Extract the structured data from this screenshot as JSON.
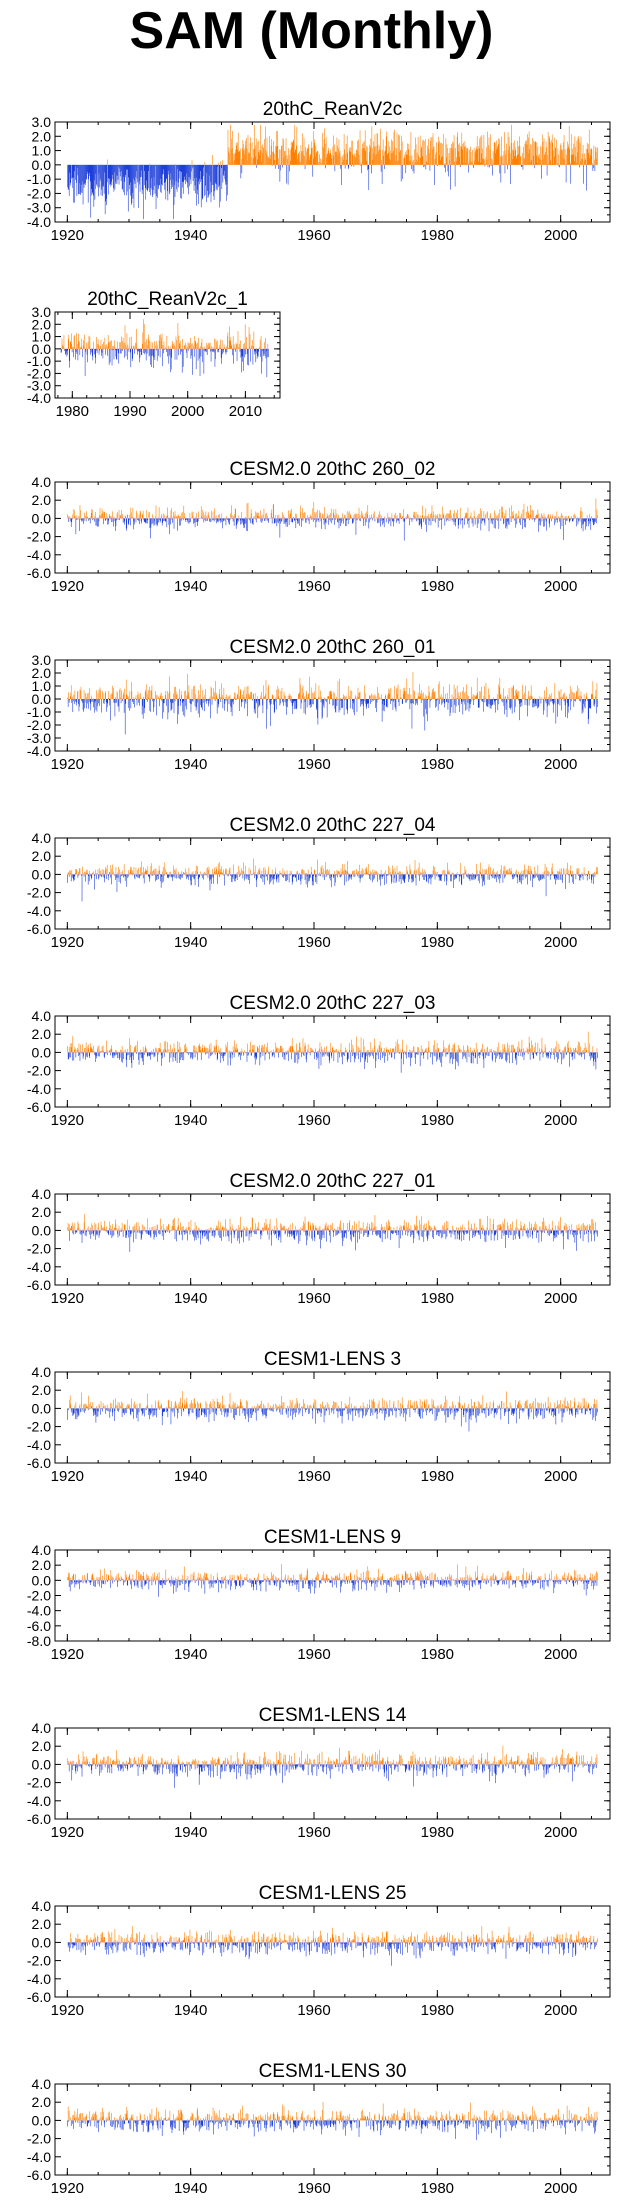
{
  "title": "SAM (Monthly)",
  "colors": {
    "positive": "#ff8000",
    "negative": "#1f3fd8",
    "axis": "#000000"
  },
  "chart_data": [
    {
      "type": "bar",
      "title": "20thC_ReanV2c",
      "x_range": [
        1918,
        2008
      ],
      "x_ticks": [
        1920,
        1940,
        1960,
        1980,
        2000
      ],
      "y_range": [
        -4.0,
        3.0
      ],
      "y_ticks": [
        "3.0",
        "2.0",
        "1.0",
        "0.0",
        "-1.0",
        "-2.0",
        "-3.0",
        "-4.0"
      ],
      "profile": {
        "start": 1920,
        "end": 2006,
        "early_end": 1946,
        "early_mean": -1.4,
        "late_mean": 1.0,
        "amp": 1.4,
        "seed": 3
      }
    },
    {
      "type": "bar",
      "title": "20thC_ReanV2c_1",
      "x_range": [
        1977,
        2016
      ],
      "x_ticks": [
        1980,
        1990,
        2000,
        2010
      ],
      "y_range": [
        -4.0,
        3.0
      ],
      "y_ticks": [
        "3.0",
        "2.0",
        "1.0",
        "0.0",
        "-1.0",
        "-2.0",
        "-3.0",
        "-4.0"
      ],
      "profile": {
        "start": 1978,
        "end": 2014,
        "early_end": 1978,
        "early_mean": 0,
        "late_mean": 0,
        "amp": 1.3,
        "seed": 7
      }
    },
    {
      "type": "bar",
      "title": "CESM2.0 20thC 260_02",
      "x_range": [
        1918,
        2008
      ],
      "x_ticks": [
        1920,
        1940,
        1960,
        1980,
        2000
      ],
      "y_range": [
        -6.0,
        4.0
      ],
      "y_ticks": [
        "4.0",
        "2.0",
        "0.0",
        "-2.0",
        "-4.0",
        "-6.0"
      ],
      "profile": {
        "start": 1920,
        "end": 2006,
        "early_end": 1920,
        "early_mean": 0,
        "late_mean": 0,
        "amp": 1.1,
        "seed": 11
      }
    },
    {
      "type": "bar",
      "title": "CESM2.0 20thC 260_01",
      "x_range": [
        1918,
        2008
      ],
      "x_ticks": [
        1920,
        1940,
        1960,
        1980,
        2000
      ],
      "y_range": [
        -4.0,
        3.0
      ],
      "y_ticks": [
        "3.0",
        "2.0",
        "1.0",
        "0.0",
        "-1.0",
        "-2.0",
        "-3.0",
        "-4.0"
      ],
      "profile": {
        "start": 1920,
        "end": 2006,
        "early_end": 1920,
        "early_mean": 0,
        "late_mean": 0,
        "amp": 1.2,
        "seed": 17
      }
    },
    {
      "type": "bar",
      "title": "CESM2.0 20thC 227_04",
      "x_range": [
        1918,
        2008
      ],
      "x_ticks": [
        1920,
        1940,
        1960,
        1980,
        2000
      ],
      "y_range": [
        -6.0,
        4.0
      ],
      "y_ticks": [
        "4.0",
        "2.0",
        "0.0",
        "-2.0",
        "-4.0",
        "-6.0"
      ],
      "profile": {
        "start": 1920,
        "end": 2006,
        "early_end": 1920,
        "early_mean": 0,
        "late_mean": 0,
        "amp": 1.0,
        "seed": 23
      }
    },
    {
      "type": "bar",
      "title": "CESM2.0 20thC 227_03",
      "x_range": [
        1918,
        2008
      ],
      "x_ticks": [
        1920,
        1940,
        1960,
        1980,
        2000
      ],
      "y_range": [
        -6.0,
        4.0
      ],
      "y_ticks": [
        "4.0",
        "2.0",
        "0.0",
        "-2.0",
        "-4.0",
        "-6.0"
      ],
      "profile": {
        "start": 1920,
        "end": 2006,
        "early_end": 1920,
        "early_mean": 0,
        "late_mean": 0,
        "amp": 1.1,
        "seed": 29
      }
    },
    {
      "type": "bar",
      "title": "CESM2.0 20thC 227_01",
      "x_range": [
        1918,
        2008
      ],
      "x_ticks": [
        1920,
        1940,
        1960,
        1980,
        2000
      ],
      "y_range": [
        -6.0,
        4.0
      ],
      "y_ticks": [
        "4.0",
        "2.0",
        "0.0",
        "-2.0",
        "-4.0",
        "-6.0"
      ],
      "profile": {
        "start": 1920,
        "end": 2006,
        "early_end": 1920,
        "early_mean": 0,
        "late_mean": 0,
        "amp": 1.1,
        "seed": 31
      }
    },
    {
      "type": "bar",
      "title": "CESM1-LENS 3",
      "x_range": [
        1918,
        2008
      ],
      "x_ticks": [
        1920,
        1940,
        1960,
        1980,
        2000
      ],
      "y_range": [
        -6.0,
        4.0
      ],
      "y_ticks": [
        "4.0",
        "2.0",
        "0.0",
        "-2.0",
        "-4.0",
        "-6.0"
      ],
      "profile": {
        "start": 1920,
        "end": 2006,
        "early_end": 1920,
        "early_mean": 0,
        "late_mean": 0,
        "amp": 1.1,
        "seed": 37
      }
    },
    {
      "type": "bar",
      "title": "CESM1-LENS 9",
      "x_range": [
        1918,
        2008
      ],
      "x_ticks": [
        1920,
        1940,
        1960,
        1980,
        2000
      ],
      "y_range": [
        -8.0,
        4.0
      ],
      "y_ticks": [
        "4.0",
        "2.0",
        "0.0",
        "-2.0",
        "-4.0",
        "-6.0",
        "-8.0"
      ],
      "profile": {
        "start": 1920,
        "end": 2006,
        "early_end": 1920,
        "early_mean": 0,
        "late_mean": 0,
        "amp": 1.1,
        "seed": 41
      }
    },
    {
      "type": "bar",
      "title": "CESM1-LENS 14",
      "x_range": [
        1918,
        2008
      ],
      "x_ticks": [
        1920,
        1940,
        1960,
        1980,
        2000
      ],
      "y_range": [
        -6.0,
        4.0
      ],
      "y_ticks": [
        "4.0",
        "2.0",
        "0.0",
        "-2.0",
        "-4.0",
        "-6.0"
      ],
      "profile": {
        "start": 1920,
        "end": 2006,
        "early_end": 1920,
        "early_mean": 0,
        "late_mean": 0,
        "amp": 1.1,
        "seed": 43
      }
    },
    {
      "type": "bar",
      "title": "CESM1-LENS 25",
      "x_range": [
        1918,
        2008
      ],
      "x_ticks": [
        1920,
        1940,
        1960,
        1980,
        2000
      ],
      "y_range": [
        -6.0,
        4.0
      ],
      "y_ticks": [
        "4.0",
        "2.0",
        "0.0",
        "-2.0",
        "-4.0",
        "-6.0"
      ],
      "profile": {
        "start": 1920,
        "end": 2006,
        "early_end": 1920,
        "early_mean": 0,
        "late_mean": 0,
        "amp": 1.1,
        "seed": 47
      }
    },
    {
      "type": "bar",
      "title": "CESM1-LENS 30",
      "x_range": [
        1918,
        2008
      ],
      "x_ticks": [
        1920,
        1940,
        1960,
        1980,
        2000
      ],
      "y_range": [
        -6.0,
        4.0
      ],
      "y_ticks": [
        "4.0",
        "2.0",
        "0.0",
        "-2.0",
        "-4.0",
        "-6.0"
      ],
      "profile": {
        "start": 1920,
        "end": 2006,
        "early_end": 1920,
        "early_mean": 0,
        "late_mean": 0,
        "amp": 1.1,
        "seed": 53
      }
    }
  ]
}
